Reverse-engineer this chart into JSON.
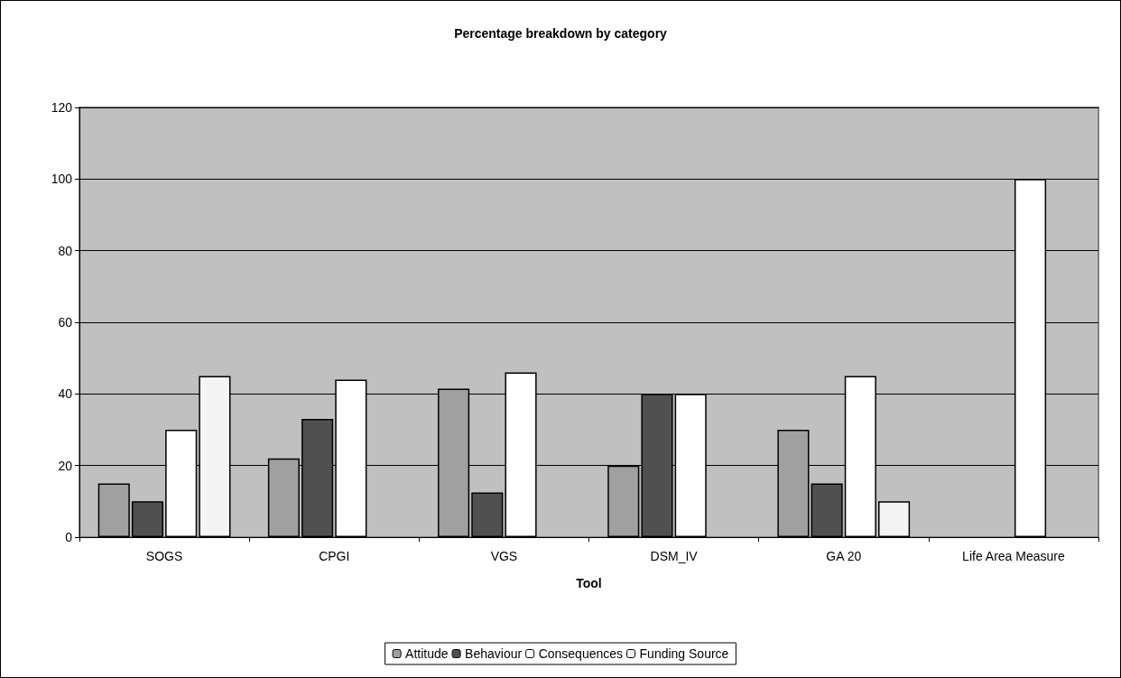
{
  "chart_data": {
    "type": "bar",
    "title": "Percentage breakdown by category",
    "xlabel": "Tool",
    "categories": [
      "SOGS",
      "CPGI",
      "VGS",
      "DSM_IV",
      "GA 20",
      "Life Area Measure"
    ],
    "series": [
      {
        "name": "Attitude",
        "color": "#a0a0a0",
        "values": [
          15,
          22,
          41.5,
          20,
          30,
          null
        ]
      },
      {
        "name": "Behaviour",
        "color": "#505050",
        "values": [
          10,
          33,
          12.5,
          40,
          15,
          null
        ]
      },
      {
        "name": "Consequences",
        "color": "#ffffff",
        "values": [
          30,
          44,
          46,
          40,
          45,
          100
        ]
      },
      {
        "name": "Funding Source",
        "color": "#f4f4f4",
        "values": [
          45,
          null,
          null,
          null,
          10,
          null
        ]
      }
    ],
    "ylim": [
      0,
      120
    ],
    "yticks": [
      0,
      20,
      40,
      60,
      80,
      100,
      120
    ],
    "grid": "y",
    "legend": "bottom"
  }
}
